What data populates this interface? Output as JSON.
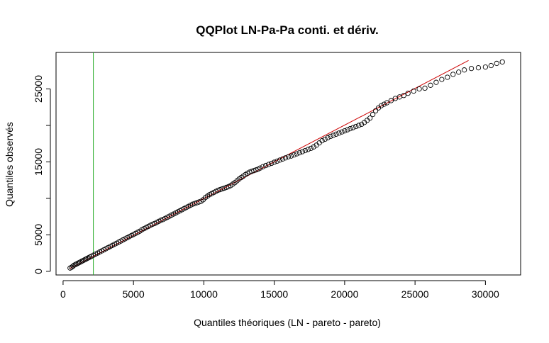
{
  "chart_data": {
    "type": "scatter",
    "title": "QQPlot LN-Pa-Pa conti. et dériv.",
    "xlabel": "Quantiles théoriques (LN - pareto - pareto)",
    "ylabel": "Quantiles observés",
    "xlim": [
      -500,
      32500
    ],
    "ylim": [
      -500,
      30000
    ],
    "xticks": [
      0,
      5000,
      10000,
      15000,
      20000,
      25000,
      30000
    ],
    "yticks": [
      0,
      5000,
      15000,
      25000
    ],
    "yticks_unlabeled": [
      10000,
      20000
    ],
    "grid": false,
    "legend": "none",
    "points_color": "#000000",
    "reference_line": {
      "color": "#cc0000",
      "x": [
        500,
        28800
      ],
      "y": [
        400,
        28900
      ]
    },
    "vertical_line": {
      "color": "#22aa22",
      "x": 2150
    },
    "series": [
      {
        "marker": "open-circle",
        "points": [
          [
            500,
            450
          ],
          [
            600,
            550
          ],
          [
            700,
            700
          ],
          [
            800,
            850
          ],
          [
            900,
            950
          ],
          [
            1000,
            1050
          ],
          [
            1100,
            1150
          ],
          [
            1200,
            1250
          ],
          [
            1300,
            1350
          ],
          [
            1400,
            1450
          ],
          [
            1500,
            1550
          ],
          [
            1600,
            1650
          ],
          [
            1700,
            1750
          ],
          [
            1800,
            1850
          ],
          [
            1900,
            1950
          ],
          [
            2000,
            2050
          ],
          [
            2150,
            2200
          ],
          [
            2300,
            2350
          ],
          [
            2450,
            2500
          ],
          [
            2600,
            2650
          ],
          [
            2750,
            2800
          ],
          [
            2900,
            2950
          ],
          [
            3050,
            3100
          ],
          [
            3200,
            3250
          ],
          [
            3350,
            3400
          ],
          [
            3500,
            3550
          ],
          [
            3650,
            3700
          ],
          [
            3800,
            3850
          ],
          [
            3950,
            4000
          ],
          [
            4100,
            4150
          ],
          [
            4250,
            4300
          ],
          [
            4400,
            4450
          ],
          [
            4550,
            4600
          ],
          [
            4700,
            4750
          ],
          [
            4850,
            4900
          ],
          [
            5000,
            5050
          ],
          [
            5150,
            5200
          ],
          [
            5300,
            5350
          ],
          [
            5450,
            5500
          ],
          [
            5600,
            5700
          ],
          [
            5750,
            5850
          ],
          [
            5900,
            6000
          ],
          [
            6050,
            6150
          ],
          [
            6200,
            6300
          ],
          [
            6350,
            6450
          ],
          [
            6500,
            6550
          ],
          [
            6650,
            6700
          ],
          [
            6800,
            6850
          ],
          [
            6950,
            7000
          ],
          [
            7100,
            7100
          ],
          [
            7250,
            7250
          ],
          [
            7400,
            7400
          ],
          [
            7550,
            7550
          ],
          [
            7700,
            7700
          ],
          [
            7850,
            7850
          ],
          [
            8000,
            8000
          ],
          [
            8150,
            8150
          ],
          [
            8300,
            8300
          ],
          [
            8450,
            8450
          ],
          [
            8600,
            8600
          ],
          [
            8750,
            8750
          ],
          [
            8900,
            8900
          ],
          [
            9050,
            9050
          ],
          [
            9200,
            9200
          ],
          [
            9350,
            9300
          ],
          [
            9500,
            9400
          ],
          [
            9650,
            9500
          ],
          [
            9800,
            9600
          ],
          [
            9950,
            9800
          ],
          [
            10100,
            10100
          ],
          [
            10250,
            10300
          ],
          [
            10400,
            10500
          ],
          [
            10550,
            10650
          ],
          [
            10700,
            10800
          ],
          [
            10850,
            10950
          ],
          [
            11000,
            11100
          ],
          [
            11150,
            11200
          ],
          [
            11300,
            11300
          ],
          [
            11450,
            11400
          ],
          [
            11600,
            11500
          ],
          [
            11750,
            11600
          ],
          [
            11900,
            11750
          ],
          [
            12050,
            11950
          ],
          [
            12200,
            12150
          ],
          [
            12350,
            12400
          ],
          [
            12500,
            12650
          ],
          [
            12650,
            12850
          ],
          [
            12800,
            13050
          ],
          [
            12950,
            13250
          ],
          [
            13100,
            13450
          ],
          [
            13250,
            13600
          ],
          [
            13400,
            13700
          ],
          [
            13550,
            13800
          ],
          [
            13700,
            13900
          ],
          [
            13850,
            14000
          ],
          [
            14000,
            14150
          ],
          [
            14200,
            14350
          ],
          [
            14400,
            14500
          ],
          [
            14600,
            14650
          ],
          [
            14800,
            14800
          ],
          [
            15000,
            14950
          ],
          [
            15200,
            15100
          ],
          [
            15400,
            15250
          ],
          [
            15600,
            15400
          ],
          [
            15800,
            15550
          ],
          [
            16000,
            15700
          ],
          [
            16200,
            15800
          ],
          [
            16400,
            15950
          ],
          [
            16600,
            16100
          ],
          [
            16800,
            16250
          ],
          [
            17000,
            16400
          ],
          [
            17200,
            16550
          ],
          [
            17400,
            16700
          ],
          [
            17600,
            16850
          ],
          [
            17800,
            17050
          ],
          [
            18000,
            17300
          ],
          [
            18200,
            17600
          ],
          [
            18400,
            17900
          ],
          [
            18600,
            18100
          ],
          [
            18800,
            18300
          ],
          [
            19000,
            18500
          ],
          [
            19200,
            18650
          ],
          [
            19400,
            18800
          ],
          [
            19600,
            18950
          ],
          [
            19800,
            19100
          ],
          [
            20000,
            19250
          ],
          [
            20200,
            19400
          ],
          [
            20400,
            19550
          ],
          [
            20600,
            19700
          ],
          [
            20800,
            19850
          ],
          [
            21000,
            20000
          ],
          [
            21200,
            20150
          ],
          [
            21400,
            20400
          ],
          [
            21600,
            20700
          ],
          [
            21800,
            21000
          ],
          [
            22000,
            21500
          ],
          [
            22200,
            22000
          ],
          [
            22400,
            22400
          ],
          [
            22600,
            22700
          ],
          [
            22800,
            22900
          ],
          [
            23000,
            23100
          ],
          [
            23300,
            23400
          ],
          [
            23600,
            23700
          ],
          [
            23900,
            23900
          ],
          [
            24200,
            24100
          ],
          [
            24500,
            24400
          ],
          [
            24900,
            24700
          ],
          [
            25300,
            25000
          ],
          [
            25700,
            25100
          ],
          [
            26100,
            25500
          ],
          [
            26500,
            25900
          ],
          [
            26900,
            26300
          ],
          [
            27300,
            26600
          ],
          [
            27700,
            27000
          ],
          [
            28100,
            27300
          ],
          [
            28500,
            27600
          ],
          [
            29000,
            27800
          ],
          [
            29500,
            27900
          ],
          [
            30000,
            28000
          ],
          [
            30400,
            28200
          ],
          [
            30800,
            28500
          ],
          [
            31200,
            28700
          ]
        ]
      }
    ]
  }
}
